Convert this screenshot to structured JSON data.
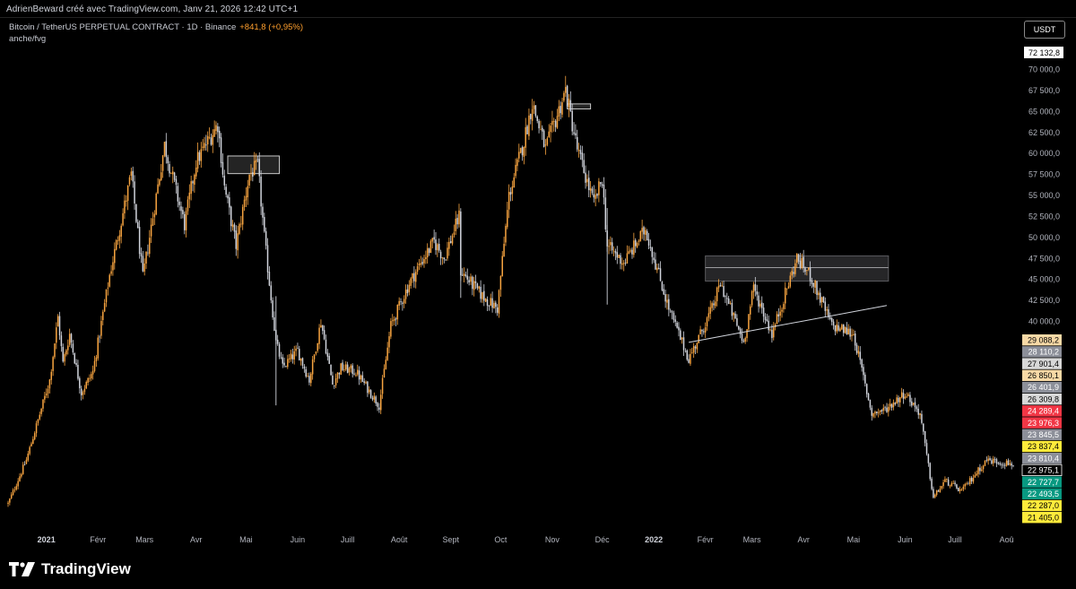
{
  "header": {
    "attribution": "AdrienBeward créé avec TradingView.com, Janv 21, 2026 12:42 UTC+1"
  },
  "legend": {
    "symbol": "Bitcoin / TetherUS PERPETUAL CONTRACT · 1D · Binance",
    "change": "+841,8 (+0,95%)",
    "indicator": "anche/fvg",
    "change_color": "#ff9f2d"
  },
  "currency_button": "USDT",
  "footer": {
    "brand": "TradingView"
  },
  "chart_data": {
    "type": "candlestick",
    "symbol": "BTCUSDT.P",
    "timeframe": "1D",
    "ylim": [
      20000,
      72132.8
    ],
    "y_ticks": [
      {
        "value": 70000,
        "label": "70 000,0"
      },
      {
        "value": 67500,
        "label": "67 500,0"
      },
      {
        "value": 65000,
        "label": "65 000,0"
      },
      {
        "value": 62500,
        "label": "62 500,0"
      },
      {
        "value": 60000,
        "label": "60 000,0"
      },
      {
        "value": 57500,
        "label": "57 500,0"
      },
      {
        "value": 55000,
        "label": "55 000,0"
      },
      {
        "value": 52500,
        "label": "52 500,0"
      },
      {
        "value": 50000,
        "label": "50 000,0"
      },
      {
        "value": 47500,
        "label": "47 500,0"
      },
      {
        "value": 45000,
        "label": "45 000,0"
      },
      {
        "value": 42500,
        "label": "42 500,0"
      },
      {
        "value": 40000,
        "label": "40 000,0"
      }
    ],
    "top_price_label": {
      "value": 72132.8,
      "label": "72 132,8"
    },
    "x_ticks": [
      {
        "label": "2021",
        "date": "2021-01-01",
        "bold": true
      },
      {
        "label": "Févr",
        "date": "2021-02-01"
      },
      {
        "label": "Mars",
        "date": "2021-03-01"
      },
      {
        "label": "Avr",
        "date": "2021-04-01"
      },
      {
        "label": "Mai",
        "date": "2021-05-01"
      },
      {
        "label": "Juin",
        "date": "2021-06-01"
      },
      {
        "label": "Juill",
        "date": "2021-07-01"
      },
      {
        "label": "Août",
        "date": "2021-08-01"
      },
      {
        "label": "Sept",
        "date": "2021-09-01"
      },
      {
        "label": "Oct",
        "date": "2021-10-01"
      },
      {
        "label": "Nov",
        "date": "2021-11-01"
      },
      {
        "label": "Déc",
        "date": "2021-12-01"
      },
      {
        "label": "2022",
        "date": "2022-01-01",
        "bold": true
      },
      {
        "label": "Févr",
        "date": "2022-02-01"
      },
      {
        "label": "Mars",
        "date": "2022-03-01"
      },
      {
        "label": "Avr",
        "date": "2022-04-01"
      },
      {
        "label": "Mai",
        "date": "2022-05-01"
      },
      {
        "label": "Juin",
        "date": "2022-06-01"
      },
      {
        "label": "Juill",
        "date": "2022-07-01"
      },
      {
        "label": "Aoû",
        "date": "2022-08-01"
      }
    ],
    "x_start": "2020-12-09",
    "price_path": [
      [
        "2020-12-09",
        18300
      ],
      [
        "2020-12-20",
        23500
      ],
      [
        "2021-01-03",
        33000
      ],
      [
        "2021-01-08",
        40500
      ],
      [
        "2021-01-11",
        35000
      ],
      [
        "2021-01-15",
        38500
      ],
      [
        "2021-01-22",
        31500
      ],
      [
        "2021-01-29",
        34000
      ],
      [
        "2021-02-08",
        45500
      ],
      [
        "2021-02-21",
        57500
      ],
      [
        "2021-02-28",
        45200
      ],
      [
        "2021-03-13",
        61000
      ],
      [
        "2021-03-25",
        51500
      ],
      [
        "2021-04-01",
        59000
      ],
      [
        "2021-04-14",
        63500
      ],
      [
        "2021-04-18",
        56000
      ],
      [
        "2021-04-25",
        49000
      ],
      [
        "2021-05-03",
        57500
      ],
      [
        "2021-05-08",
        58500
      ],
      [
        "2021-05-12",
        50000
      ],
      [
        "2021-05-19",
        37500
      ],
      [
        "2021-05-23",
        34500
      ],
      [
        "2021-06-01",
        36500
      ],
      [
        "2021-06-08",
        33000
      ],
      [
        "2021-06-15",
        40000
      ],
      [
        "2021-06-22",
        32500
      ],
      [
        "2021-06-27",
        34500
      ],
      [
        "2021-07-06",
        34000
      ],
      [
        "2021-07-20",
        30000
      ],
      [
        "2021-07-27",
        39500
      ],
      [
        "2021-08-07",
        44500
      ],
      [
        "2021-08-14",
        47000
      ],
      [
        "2021-08-22",
        49500
      ],
      [
        "2021-08-28",
        47500
      ],
      [
        "2021-09-06",
        52500
      ],
      [
        "2021-09-07",
        46000
      ],
      [
        "2021-09-20",
        43000
      ],
      [
        "2021-09-29",
        41500
      ],
      [
        "2021-10-06",
        55000
      ],
      [
        "2021-10-15",
        61500
      ],
      [
        "2021-10-20",
        66000
      ],
      [
        "2021-10-28",
        60500
      ],
      [
        "2021-11-09",
        67500
      ],
      [
        "2021-11-16",
        60500
      ],
      [
        "2021-11-26",
        54000
      ],
      [
        "2021-12-01",
        57000
      ],
      [
        "2021-12-04",
        49000
      ],
      [
        "2021-12-14",
        47000
      ],
      [
        "2021-12-27",
        51000
      ],
      [
        "2022-01-10",
        41500
      ],
      [
        "2022-01-22",
        35500
      ],
      [
        "2022-02-05",
        41500
      ],
      [
        "2022-02-10",
        44500
      ],
      [
        "2022-02-24",
        37500
      ],
      [
        "2022-03-02",
        44000
      ],
      [
        "2022-03-13",
        38500
      ],
      [
        "2022-03-28",
        47500
      ],
      [
        "2022-04-05",
        45500
      ],
      [
        "2022-04-18",
        39500
      ],
      [
        "2022-05-01",
        38500
      ],
      [
        "2022-05-12",
        29000
      ],
      [
        "2022-05-20",
        29500
      ],
      [
        "2022-06-01",
        31500
      ],
      [
        "2022-06-10",
        29000
      ],
      [
        "2022-06-18",
        19000
      ],
      [
        "2022-06-25",
        21000
      ],
      [
        "2022-07-05",
        19800
      ],
      [
        "2022-07-20",
        23500
      ],
      [
        "2022-08-05",
        23000
      ]
    ],
    "annotations": {
      "boxes": [
        {
          "start": "2021-04-20",
          "end": "2021-05-21",
          "top": 59700,
          "bottom": 57600,
          "style": "light"
        },
        {
          "start": "2021-11-10",
          "end": "2021-11-24",
          "top": 65900,
          "bottom": 65300,
          "style": "light"
        },
        {
          "start": "2022-02-01",
          "end": "2022-05-22",
          "top": 47800,
          "bottom": 44800,
          "style": "dark",
          "midline": 46400
        }
      ],
      "trendline": {
        "start": [
          "2022-01-22",
          37500
        ],
        "end": [
          "2022-05-21",
          41900
        ]
      }
    },
    "price_labels": [
      {
        "label": "29 088,2",
        "value": 29088.2,
        "bg": "#f7d9a6",
        "fg": "#000000"
      },
      {
        "label": "28 110,2",
        "value": 28110.2,
        "bg": "#8c8f99",
        "fg": "#ffffff"
      },
      {
        "label": "27 901,4",
        "value": 27901.4,
        "bg": "#d8d8d8",
        "fg": "#000000"
      },
      {
        "label": "26 850,1",
        "value": 26850.1,
        "bg": "#f7d9a6",
        "fg": "#000000"
      },
      {
        "label": "26 401,9",
        "value": 26401.9,
        "bg": "#8c8f99",
        "fg": "#ffffff"
      },
      {
        "label": "26 309,8",
        "value": 26309.8,
        "bg": "#d8d8d8",
        "fg": "#000000"
      },
      {
        "label": "24 289,4",
        "value": 24289.4,
        "bg": "#f23645",
        "fg": "#ffffff"
      },
      {
        "label": "23 976,3",
        "value": 23976.3,
        "bg": "#f23645",
        "fg": "#ffffff"
      },
      {
        "label": "23 845,5",
        "value": 23845.5,
        "bg": "#8c8f99",
        "fg": "#ffffff"
      },
      {
        "label": "23 837,4",
        "value": 23837.4,
        "bg": "#ffeb3b",
        "fg": "#000000"
      },
      {
        "label": "23 810,4",
        "value": 23810.4,
        "bg": "#8c8f99",
        "fg": "#ffffff"
      },
      {
        "label": "22 975,1",
        "value": 22975.1,
        "bg": "#000000",
        "fg": "#ffffff",
        "current": true
      },
      {
        "label": "22 727,7",
        "value": 22727.7,
        "bg": "#089981",
        "fg": "#ffffff"
      },
      {
        "label": "22 493,5",
        "value": 22493.5,
        "bg": "#089981",
        "fg": "#ffffff"
      },
      {
        "label": "22 287,0",
        "value": 22287.0,
        "bg": "#ffeb3b",
        "fg": "#000000"
      },
      {
        "label": "21 405,0",
        "value": 21405.0,
        "bg": "#ffeb3b",
        "fg": "#000000"
      }
    ],
    "colors": {
      "up": "#f7a440",
      "down": "#d1d4dc",
      "background": "#000000",
      "trendline": "#d1d4dc"
    }
  }
}
